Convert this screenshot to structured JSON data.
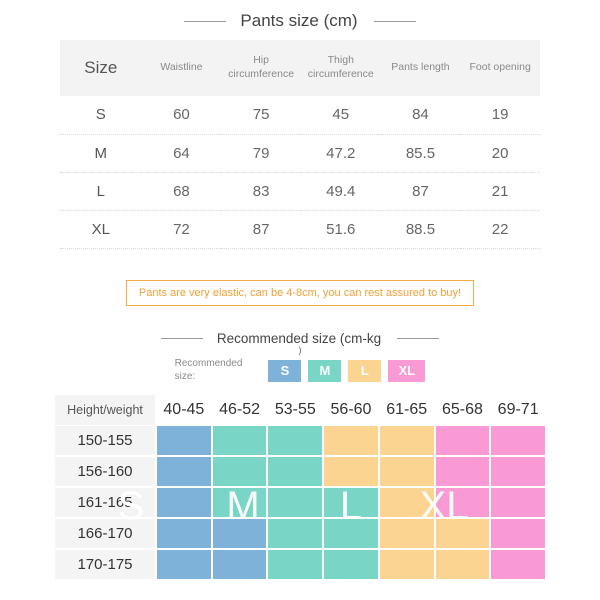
{
  "pants_table": {
    "title": "Pants size (cm)",
    "columns": [
      "Size",
      "Waistline",
      "Hip circumference",
      "Thigh circumference",
      "Pants length",
      "Foot opening"
    ],
    "rows": [
      {
        "size": "S",
        "values": [
          "60",
          "75",
          "45",
          "84",
          "19"
        ]
      },
      {
        "size": "M",
        "values": [
          "64",
          "79",
          "47.2",
          "85.5",
          "20"
        ]
      },
      {
        "size": "L",
        "values": [
          "68",
          "83",
          "49.4",
          "87",
          "21"
        ]
      },
      {
        "size": "XL",
        "values": [
          "72",
          "87",
          "51.6",
          "88.5",
          "22"
        ]
      }
    ]
  },
  "note": {
    "text": "Pants are very elastic, can be 4-8cm, you can rest assured to buy!",
    "accent_color": "#f0a139"
  },
  "recommend": {
    "title": "Recommended size (cm-kg",
    "title_wrap": ")",
    "legend_label_line1": "Recommended",
    "legend_label_line2": "size:",
    "legend": [
      {
        "code": "S",
        "label": "S"
      },
      {
        "code": "M",
        "label": "M"
      },
      {
        "code": "L",
        "label": "L"
      },
      {
        "code": "XL",
        "label": "XL"
      }
    ]
  },
  "grid": {
    "corner_label": "Height/weight",
    "weight_columns": [
      "40-45",
      "46-52",
      "53-55",
      "56-60",
      "61-65",
      "65-68",
      "69-71"
    ],
    "rows": [
      {
        "height": "150-155",
        "sizes": [
          "S",
          "M",
          "M",
          "L",
          "L",
          "XL",
          "XL"
        ]
      },
      {
        "height": "156-160",
        "sizes": [
          "S",
          "M",
          "M",
          "L",
          "L",
          "XL",
          "XL"
        ]
      },
      {
        "height": "161-165",
        "sizes": [
          "S",
          "M",
          "M",
          "M",
          "L",
          "XL",
          "XL"
        ]
      },
      {
        "height": "166-170",
        "sizes": [
          "S",
          "S",
          "M",
          "M",
          "L",
          "L",
          "XL"
        ]
      },
      {
        "height": "170-175",
        "sizes": [
          "S",
          "S",
          "M",
          "M",
          "L",
          "L",
          "XL"
        ]
      }
    ],
    "overlay_letters": [
      "S",
      "M",
      "L",
      "XL"
    ]
  },
  "size_colors": {
    "S": "#7fb2d8",
    "M": "#79d6c6",
    "L": "#fcd492",
    "XL": "#fa9ad5"
  },
  "chart_data": [
    {
      "type": "table",
      "title": "Pants size (cm)",
      "columns": [
        "Size",
        "Waistline",
        "Hip circumference",
        "Thigh circumference",
        "Pants length",
        "Foot opening"
      ],
      "rows": [
        [
          "S",
          60,
          75,
          45,
          84,
          19
        ],
        [
          "M",
          64,
          79,
          47.2,
          85.5,
          20
        ],
        [
          "L",
          68,
          83,
          49.4,
          87,
          21
        ],
        [
          "XL",
          72,
          87,
          51.6,
          88.5,
          22
        ]
      ]
    },
    {
      "type": "heatmap",
      "title": "Recommended size (cm-kg)",
      "xlabel": "weight",
      "ylabel": "Height",
      "x_categories": [
        "40-45",
        "46-52",
        "53-55",
        "56-60",
        "61-65",
        "65-68",
        "69-71"
      ],
      "y_categories": [
        "150-155",
        "156-160",
        "161-165",
        "166-170",
        "170-175"
      ],
      "values": [
        [
          "S",
          "M",
          "M",
          "L",
          "L",
          "XL",
          "XL"
        ],
        [
          "S",
          "M",
          "M",
          "L",
          "L",
          "XL",
          "XL"
        ],
        [
          "S",
          "M",
          "M",
          "M",
          "L",
          "XL",
          "XL"
        ],
        [
          "S",
          "S",
          "M",
          "M",
          "L",
          "L",
          "XL"
        ],
        [
          "S",
          "S",
          "M",
          "M",
          "L",
          "L",
          "XL"
        ]
      ],
      "legend": [
        "S",
        "M",
        "L",
        "XL"
      ],
      "legend_position": "top",
      "colors": {
        "S": "#7fb2d8",
        "M": "#79d6c6",
        "L": "#fcd492",
        "XL": "#fa9ad5"
      }
    }
  ]
}
